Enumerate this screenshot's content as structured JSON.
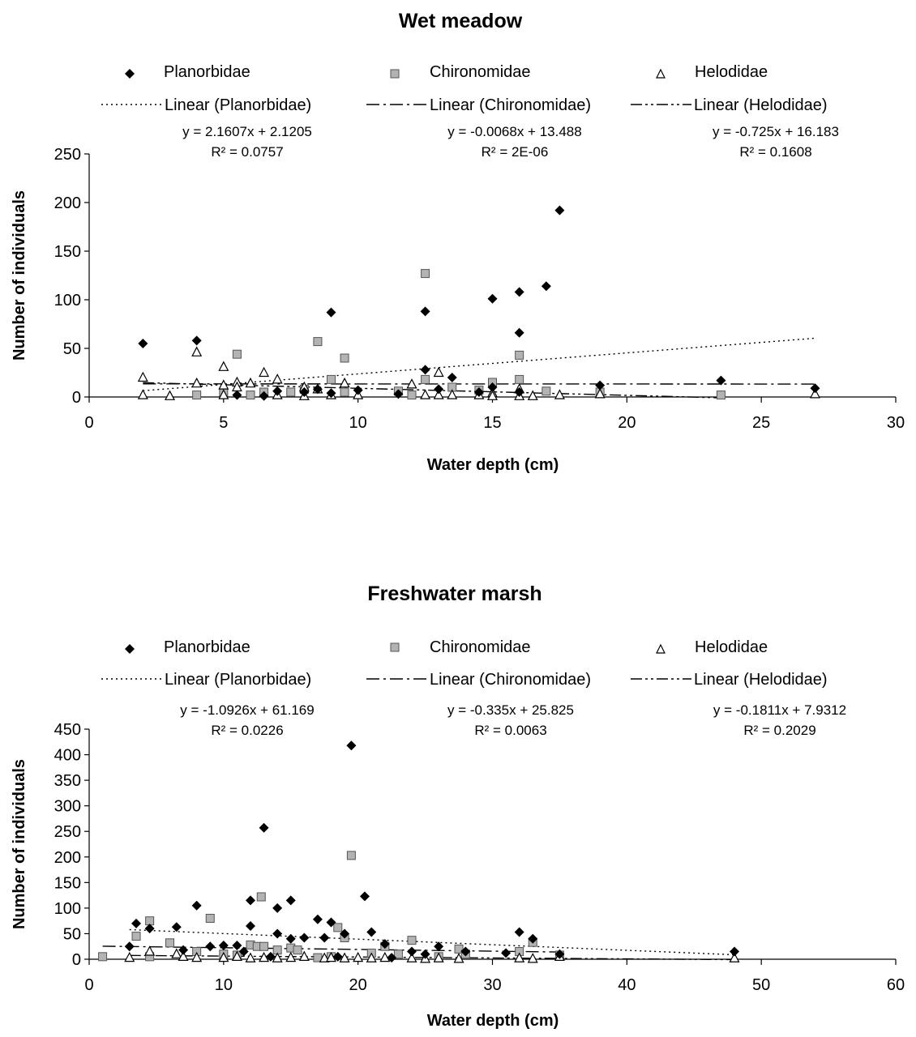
{
  "chart_data": [
    {
      "type": "scatter",
      "title": "Wet meadow",
      "xlabel": "Water depth (cm)",
      "ylabel": "Number of individuals",
      "xlim": [
        0,
        30
      ],
      "ylim": [
        0,
        250
      ],
      "xticks": [
        "0",
        "5",
        "10",
        "15",
        "20",
        "25",
        "30"
      ],
      "yticks": [
        "0",
        "50",
        "100",
        "150",
        "200",
        "250"
      ],
      "grid": false,
      "legend_position": "top",
      "series": [
        {
          "name": "Planorbidae",
          "marker": "diamond",
          "color": "#000000",
          "points": [
            [
              2,
              55
            ],
            [
              4,
              58
            ],
            [
              9,
              87
            ],
            [
              12.5,
              88
            ],
            [
              12.5,
              28
            ],
            [
              13.5,
              20
            ],
            [
              15,
              101
            ],
            [
              16,
              108
            ],
            [
              16,
              66
            ],
            [
              17,
              114
            ],
            [
              17.5,
              192
            ],
            [
              19,
              12
            ],
            [
              23.5,
              17
            ],
            [
              27,
              9
            ],
            [
              5.5,
              2
            ],
            [
              6.5,
              1
            ],
            [
              7,
              6
            ],
            [
              8,
              5
            ],
            [
              8.5,
              8
            ],
            [
              9,
              4
            ],
            [
              10,
              7
            ],
            [
              11.5,
              3
            ],
            [
              13,
              8
            ],
            [
              14.5,
              5
            ],
            [
              15,
              10
            ],
            [
              16,
              5
            ]
          ]
        },
        {
          "name": "Chironomidae",
          "marker": "square",
          "color": "#b3b3b3",
          "points": [
            [
              12.5,
              127
            ],
            [
              8.5,
              57
            ],
            [
              5.5,
              44
            ],
            [
              9.5,
              40
            ],
            [
              16,
              43
            ],
            [
              16,
              18
            ],
            [
              9,
              18
            ],
            [
              12.5,
              18
            ],
            [
              15,
              15
            ],
            [
              13.5,
              10
            ],
            [
              6,
              2
            ],
            [
              6.5,
              5
            ],
            [
              7.5,
              5
            ],
            [
              8,
              8
            ],
            [
              9.5,
              5
            ],
            [
              11.5,
              6
            ],
            [
              12,
              2
            ],
            [
              14.5,
              7
            ],
            [
              17,
              6
            ],
            [
              19,
              5
            ],
            [
              23.5,
              2
            ],
            [
              4,
              2
            ],
            [
              5,
              5
            ]
          ]
        },
        {
          "name": "Helodidae",
          "marker": "triangle",
          "color": "#ffffff",
          "points": [
            [
              2,
              20
            ],
            [
              2,
              2
            ],
            [
              3,
              1
            ],
            [
              4,
              46
            ],
            [
              4,
              14
            ],
            [
              5,
              31
            ],
            [
              5,
              12
            ],
            [
              5,
              2
            ],
            [
              5.5,
              15
            ],
            [
              5.5,
              10
            ],
            [
              6,
              14
            ],
            [
              6.5,
              25
            ],
            [
              7,
              18
            ],
            [
              7,
              2
            ],
            [
              8,
              10
            ],
            [
              8,
              1
            ],
            [
              8.5,
              8
            ],
            [
              9,
              2
            ],
            [
              9.5,
              14
            ],
            [
              10,
              2
            ],
            [
              12,
              13
            ],
            [
              12.5,
              2
            ],
            [
              13,
              25
            ],
            [
              13,
              2
            ],
            [
              13.5,
              2
            ],
            [
              14.5,
              2
            ],
            [
              15,
              4
            ],
            [
              15,
              1
            ],
            [
              16,
              8
            ],
            [
              16,
              1
            ],
            [
              16.5,
              1
            ],
            [
              17.5,
              2
            ],
            [
              19,
              3
            ],
            [
              27,
              3
            ]
          ]
        }
      ],
      "trendlines": [
        {
          "name": "Linear (Planorbidae)",
          "slope": 2.1607,
          "intercept": 2.1205,
          "x_range": [
            2,
            27
          ],
          "style": "dotted",
          "equation": "y = 2.1607x + 2.1205",
          "r2_text": "R² = 0.0757"
        },
        {
          "name": "Linear (Chironomidae)",
          "slope": -0.0068,
          "intercept": 13.488,
          "x_range": [
            2,
            27
          ],
          "style": "dashdot",
          "equation": "y = -0.0068x + 13.488",
          "r2_text": "R² = 2E-06"
        },
        {
          "name": "Linear (Helodidae)",
          "slope": -0.725,
          "intercept": 16.183,
          "x_range": [
            2,
            23.5
          ],
          "style": "dashdotdot",
          "equation": "y = -0.725x + 16.183",
          "r2_text": "R² = 0.1608"
        }
      ]
    },
    {
      "type": "scatter",
      "title": "Freshwater marsh",
      "xlabel": "Water depth (cm)",
      "ylabel": "Number of individuals",
      "xlim": [
        0,
        60
      ],
      "ylim": [
        0,
        450
      ],
      "xticks": [
        "0",
        "10",
        "20",
        "30",
        "40",
        "50",
        "60"
      ],
      "yticks": [
        "0",
        "50",
        "100",
        "150",
        "200",
        "250",
        "300",
        "350",
        "400",
        "450"
      ],
      "grid": false,
      "legend_position": "top",
      "series": [
        {
          "name": "Planorbidae",
          "marker": "diamond",
          "color": "#000000",
          "points": [
            [
              3,
              25
            ],
            [
              3.5,
              70
            ],
            [
              4.5,
              60
            ],
            [
              6.5,
              63
            ],
            [
              7,
              18
            ],
            [
              8,
              105
            ],
            [
              9,
              25
            ],
            [
              10,
              27
            ],
            [
              11,
              27
            ],
            [
              12,
              65
            ],
            [
              12,
              115
            ],
            [
              13,
              257
            ],
            [
              14,
              100
            ],
            [
              14,
              50
            ],
            [
              15,
              115
            ],
            [
              15,
              40
            ],
            [
              16,
              42
            ],
            [
              17,
              78
            ],
            [
              17.5,
              42
            ],
            [
              18,
              72
            ],
            [
              19,
              50
            ],
            [
              19.5,
              418
            ],
            [
              20.5,
              123
            ],
            [
              21,
              53
            ],
            [
              22,
              30
            ],
            [
              24,
              15
            ],
            [
              25,
              10
            ],
            [
              26,
              25
            ],
            [
              28,
              15
            ],
            [
              31,
              12
            ],
            [
              32,
              53
            ],
            [
              33,
              40
            ],
            [
              35,
              10
            ],
            [
              48,
              15
            ],
            [
              11.5,
              15
            ],
            [
              13.5,
              5
            ],
            [
              18.5,
              5
            ],
            [
              22.5,
              3
            ]
          ]
        },
        {
          "name": "Chironomidae",
          "marker": "square",
          "color": "#b3b3b3",
          "points": [
            [
              1,
              5
            ],
            [
              3.5,
              45
            ],
            [
              4.5,
              75
            ],
            [
              6,
              32
            ],
            [
              8,
              15
            ],
            [
              9,
              80
            ],
            [
              12,
              28
            ],
            [
              12.5,
              25
            ],
            [
              12.8,
              122
            ],
            [
              13,
              25
            ],
            [
              14,
              18
            ],
            [
              15,
              22
            ],
            [
              15.5,
              18
            ],
            [
              17,
              3
            ],
            [
              18.5,
              62
            ],
            [
              19,
              42
            ],
            [
              19.5,
              203
            ],
            [
              21,
              12
            ],
            [
              22,
              25
            ],
            [
              24,
              37
            ],
            [
              27.5,
              20
            ],
            [
              28,
              10
            ],
            [
              32,
              15
            ],
            [
              33,
              33
            ],
            [
              35,
              8
            ],
            [
              4.5,
              5
            ],
            [
              10,
              10
            ],
            [
              11,
              8
            ],
            [
              18,
              5
            ],
            [
              23,
              10
            ],
            [
              26,
              5
            ]
          ]
        },
        {
          "name": "Helodidae",
          "marker": "triangle",
          "color": "#ffffff",
          "points": [
            [
              3,
              3
            ],
            [
              4.5,
              15
            ],
            [
              6.5,
              10
            ],
            [
              7,
              5
            ],
            [
              8,
              3
            ],
            [
              10,
              3
            ],
            [
              11,
              5
            ],
            [
              12,
              2
            ],
            [
              13,
              3
            ],
            [
              14,
              2
            ],
            [
              15,
              3
            ],
            [
              16,
              5
            ],
            [
              17.5,
              2
            ],
            [
              18,
              3
            ],
            [
              19,
              2
            ],
            [
              20,
              3
            ],
            [
              21,
              2
            ],
            [
              22,
              3
            ],
            [
              24,
              2
            ],
            [
              25,
              1
            ],
            [
              26,
              2
            ],
            [
              27.5,
              1
            ],
            [
              32,
              2
            ],
            [
              33,
              1
            ],
            [
              35,
              5
            ],
            [
              48,
              2
            ]
          ]
        }
      ],
      "trendlines": [
        {
          "name": "Linear (Planorbidae)",
          "slope": -1.0926,
          "intercept": 61.169,
          "x_range": [
            3,
            48
          ],
          "style": "dotted",
          "equation": "y = -1.0926x + 61.169",
          "r2_text": "R² = 0.0226"
        },
        {
          "name": "Linear (Chironomidae)",
          "slope": -0.335,
          "intercept": 25.825,
          "x_range": [
            1,
            35
          ],
          "style": "dashdot",
          "equation": "y = -0.335x + 25.825",
          "r2_text": "R² = 0.0063"
        },
        {
          "name": "Linear (Helodidae)",
          "slope": -0.1811,
          "intercept": 7.9312,
          "x_range": [
            3,
            48
          ],
          "style": "dashdotdot",
          "equation": "y = -0.1811x + 7.9312",
          "r2_text": "R² = 0.2029"
        }
      ]
    }
  ]
}
